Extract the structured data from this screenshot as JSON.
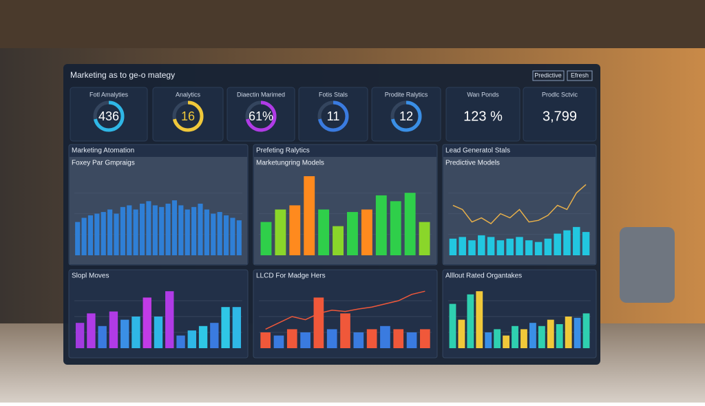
{
  "header": {
    "title": "Marketing as to ge-o mategy",
    "buttons": [
      "Predictive",
      "Efresh"
    ]
  },
  "kpis": [
    {
      "label": "Fotl Amalyties",
      "value": "436"
    },
    {
      "label": "Analytics",
      "value": "16"
    },
    {
      "label": "Diaectin Marimed",
      "value": "61%"
    },
    {
      "label": "Fotis Stals",
      "value": "11"
    },
    {
      "label": "Prodite Ralytics",
      "value": "12"
    },
    {
      "label": "Wan Ponds",
      "value": "123 %"
    },
    {
      "label": "Prodlc Sctvic",
      "value": "3,799"
    }
  ],
  "panels": [
    {
      "title": "Marketing Atomation",
      "subtitle": "Foxey Par Gmpraigs",
      "chart": {
        "ylim": [
          0,
          100
        ],
        "values": [
          40,
          45,
          48,
          50,
          52,
          55,
          50,
          58,
          60,
          55,
          62,
          65,
          60,
          58,
          62,
          66,
          60,
          55,
          58,
          62,
          55,
          50,
          52,
          48,
          45,
          42
        ],
        "colors": [
          "#2f7fd6"
        ]
      }
    },
    {
      "title": "Prefeting Ralytics",
      "subtitle": "Marketungring Models",
      "chart": {
        "ylim": [
          0,
          100
        ],
        "values": [
          40,
          55,
          60,
          95,
          55,
          35,
          52,
          55,
          72,
          65,
          75,
          40
        ],
        "colors": [
          "#2fcf4a",
          "#8ad62a",
          "#ff8a1e",
          "#ff8a1e",
          "#2fcf4a",
          "#8ad62a",
          "#2fcf4a",
          "#ff8a1e",
          "#2fcf4a",
          "#2fcf4a",
          "#2fcf4a",
          "#8ad62a"
        ]
      }
    },
    {
      "title": "Lead Generatol Stals",
      "subtitle": "Predictive Models",
      "chart": {
        "ylim": [
          0,
          100
        ],
        "values": [
          20,
          22,
          18,
          24,
          22,
          18,
          20,
          22,
          18,
          16,
          20,
          26,
          30,
          34,
          28
        ],
        "colors": [
          "#22c7e0"
        ],
        "line": [
          60,
          55,
          40,
          45,
          38,
          50,
          45,
          55,
          40,
          42,
          48,
          60,
          55,
          75,
          85
        ],
        "line_color": "#e8b04a"
      }
    },
    {
      "title": "Slopl Moves",
      "subtitle": null,
      "chart": {
        "ylim": [
          0,
          100
        ],
        "values": [
          40,
          55,
          35,
          58,
          45,
          50,
          80,
          50,
          90,
          20,
          28,
          35,
          40,
          65,
          65
        ],
        "colors": [
          "#a23be0",
          "#b03be6",
          "#3a7be0",
          "#b03be6",
          "#3a8fe6",
          "#2fb7e6",
          "#c13be6",
          "#2fb7e6",
          "#b03be6",
          "#3a7be0",
          "#2fb7e6",
          "#2fc7e6",
          "#3a7be0",
          "#2fc7e6",
          "#2fb7e6"
        ]
      }
    },
    {
      "title": "LLCD For Madge Hers",
      "subtitle": null,
      "chart": {
        "ylim": [
          0,
          100
        ],
        "values": [
          25,
          20,
          30,
          25,
          80,
          30,
          55,
          25,
          30,
          35,
          30,
          25,
          30
        ],
        "colors": [
          "#f0583a",
          "#3a7be0"
        ],
        "line": [
          30,
          40,
          50,
          45,
          55,
          60,
          58,
          62,
          65,
          70,
          75,
          85,
          90
        ],
        "line_color": "#f0583a"
      }
    },
    {
      "title": "Alllout Rated Organtakes",
      "subtitle": null,
      "chart": {
        "ylim": [
          0,
          100
        ],
        "values": [
          70,
          45,
          85,
          90,
          25,
          30,
          20,
          35,
          30,
          40,
          35,
          45,
          38,
          50,
          48,
          55
        ],
        "colors": [
          "#2fd0b0",
          "#f0c83a",
          "#2fd0b0",
          "#f0c83a",
          "#3a8fe6"
        ]
      }
    }
  ]
}
